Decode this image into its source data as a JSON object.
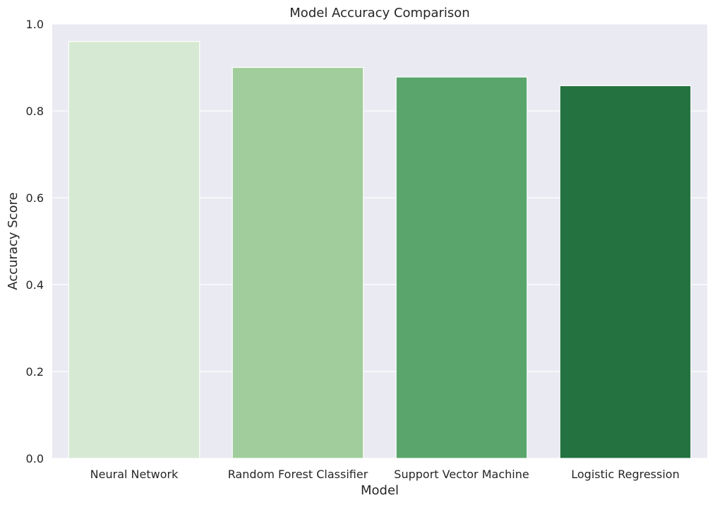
{
  "chart_data": {
    "type": "bar",
    "title": "Model Accuracy Comparison",
    "xlabel": "Model",
    "ylabel": "Accuracy Score",
    "categories": [
      "Neural Network",
      "Random Forest Classifier",
      "Support Vector Machine",
      "Logistic Regression"
    ],
    "values": [
      0.96,
      0.9,
      0.878,
      0.858
    ],
    "colors": [
      "#d6ead3",
      "#a0cd9b",
      "#5aa56c",
      "#23723f"
    ],
    "ylim": [
      0,
      1.0
    ],
    "yticks": [
      0.0,
      0.2,
      0.4,
      0.6,
      0.8,
      1.0
    ],
    "ytick_labels": [
      "0.0",
      "0.2",
      "0.4",
      "0.6",
      "0.8",
      "1.0"
    ],
    "grid": true,
    "background": "#eaeaf2"
  }
}
